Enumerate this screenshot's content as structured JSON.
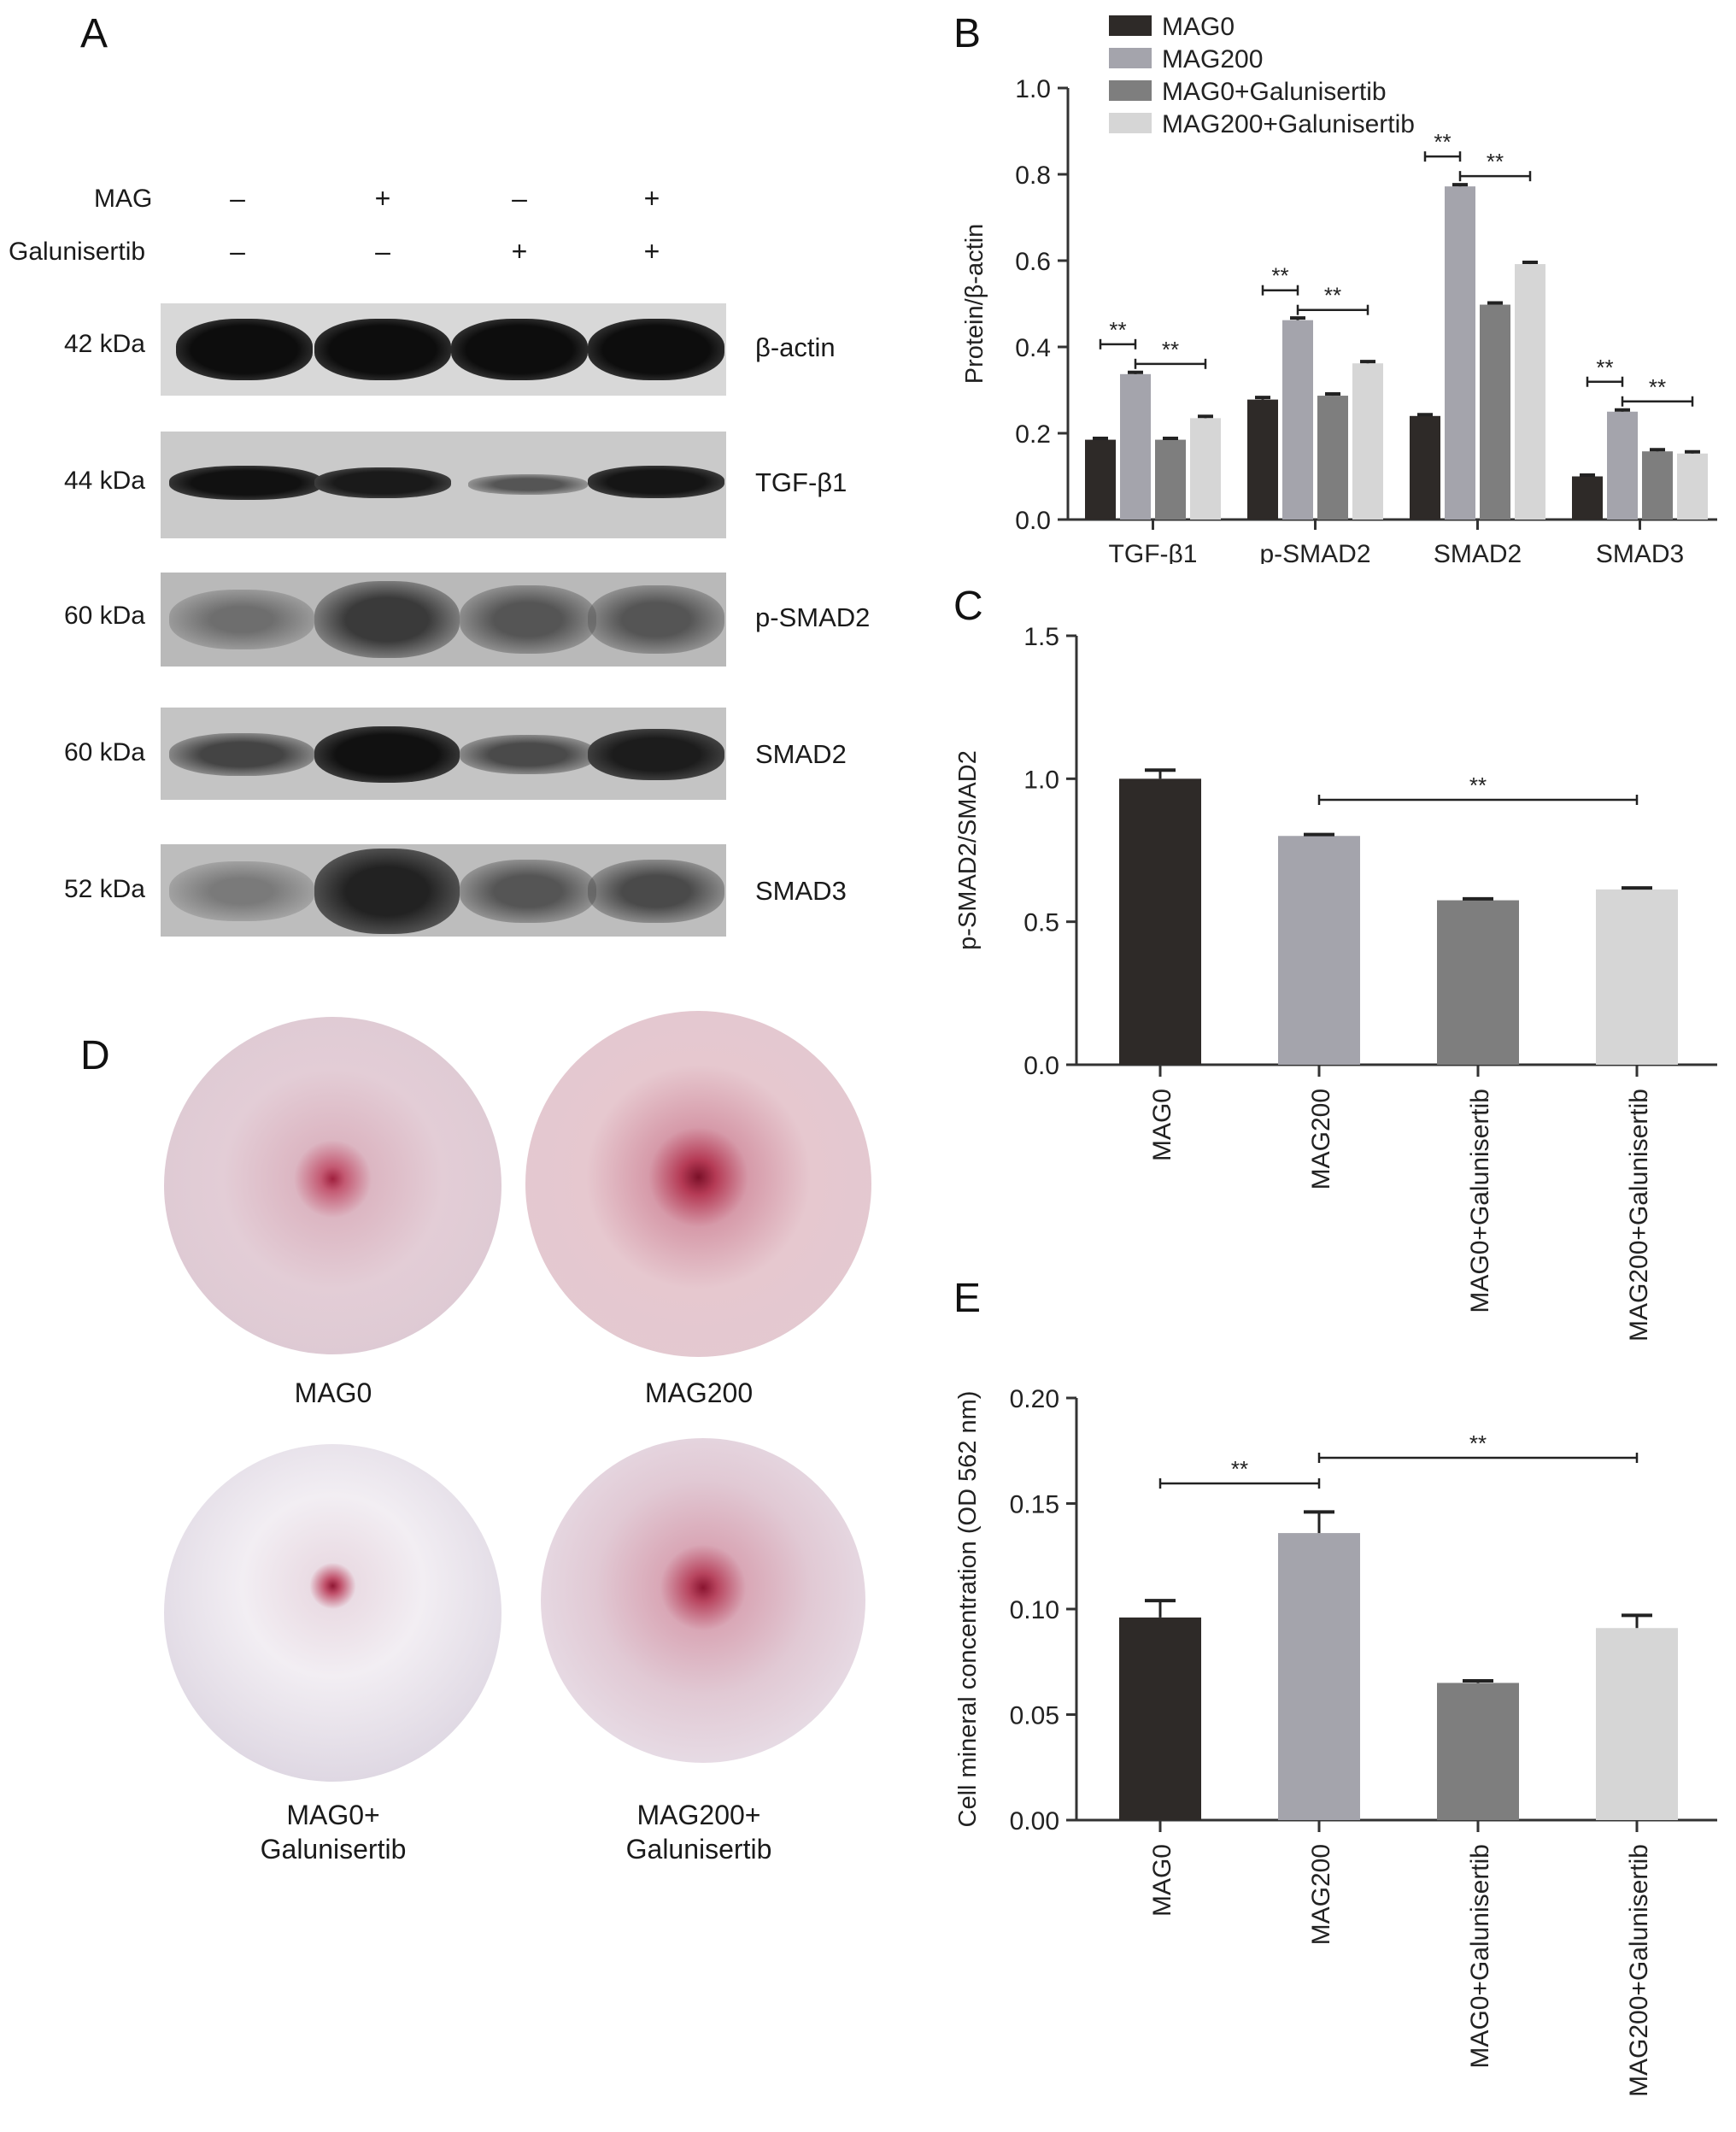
{
  "panels": {
    "a": "A",
    "b": "B",
    "c": "C",
    "d": "D",
    "e": "E"
  },
  "western_blot": {
    "treatments": [
      {
        "name": "MAG",
        "signs": [
          "–",
          "+",
          "–",
          "+"
        ]
      },
      {
        "name": "Galunisertib",
        "signs": [
          "–",
          "–",
          "+",
          "+"
        ]
      }
    ],
    "rows": [
      {
        "kda": "42 kDa",
        "protein": "β-actin"
      },
      {
        "kda": "44 kDa",
        "protein": "TGF-β1"
      },
      {
        "kda": "60 kDa",
        "protein": "p-SMAD2"
      },
      {
        "kda": "60 kDa",
        "protein": "SMAD2"
      },
      {
        "kda": "52 kDa",
        "protein": "SMAD3"
      }
    ]
  },
  "staining": {
    "labels": [
      {
        "line1": "MAG0",
        "line2": ""
      },
      {
        "line1": "MAG200",
        "line2": ""
      },
      {
        "line1": "MAG0+",
        "line2": "Galunisertib"
      },
      {
        "line1": "MAG200+",
        "line2": "Galunisertib"
      }
    ]
  },
  "chart_data": [
    {
      "id": "B",
      "type": "bar",
      "categories": [
        "TGF-β1",
        "p-SMAD2",
        "SMAD2",
        "SMAD3"
      ],
      "series": [
        {
          "name": "MAG0",
          "color": "#2e2a28",
          "values": [
            0.185,
            0.278,
            0.24,
            0.1
          ],
          "errors": [
            0.003,
            0.005,
            0.003,
            0.003
          ]
        },
        {
          "name": "MAG200",
          "color": "#a4a4ac",
          "values": [
            0.337,
            0.462,
            0.772,
            0.25
          ],
          "errors": [
            0.004,
            0.005,
            0.004,
            0.004
          ]
        },
        {
          "name": "MAG0+Galunisertib",
          "color": "#7e7e7e",
          "values": [
            0.185,
            0.287,
            0.498,
            0.158
          ],
          "errors": [
            0.003,
            0.004,
            0.004,
            0.004
          ]
        },
        {
          "name": "MAG200+Galunisertib",
          "color": "#d6d6d6",
          "values": [
            0.235,
            0.362,
            0.592,
            0.153
          ],
          "errors": [
            0.004,
            0.004,
            0.004,
            0.004
          ]
        }
      ],
      "ylabel": "Protein/β-actin",
      "ylim": [
        0,
        1.0
      ],
      "yticks": [
        "0.0",
        "0.2",
        "0.4",
        "0.6",
        "0.8",
        "1.0"
      ],
      "significance": [
        {
          "category": 0,
          "from": 0,
          "to": 1,
          "label": "**"
        },
        {
          "category": 0,
          "from": 1,
          "to": 3,
          "label": "**"
        },
        {
          "category": 1,
          "from": 0,
          "to": 1,
          "label": "**"
        },
        {
          "category": 1,
          "from": 1,
          "to": 3,
          "label": "**"
        },
        {
          "category": 2,
          "from": 0,
          "to": 1,
          "label": "**"
        },
        {
          "category": 2,
          "from": 1,
          "to": 3,
          "label": "**"
        },
        {
          "category": 3,
          "from": 0,
          "to": 1,
          "label": "**"
        },
        {
          "category": 3,
          "from": 1,
          "to": 3,
          "label": "**"
        }
      ],
      "legend": "top-left",
      "grid": false
    },
    {
      "id": "C",
      "type": "bar",
      "categories": [
        "MAG0",
        "MAG200",
        "MAG0+Galunisertib",
        "MAG200+Galunisertib"
      ],
      "values": [
        1.0,
        0.8,
        0.575,
        0.613
      ],
      "errors": [
        0.03,
        0.005,
        0.005,
        0.005
      ],
      "colors": [
        "#2e2a28",
        "#a4a4ac",
        "#7e7e7e",
        "#d6d6d6"
      ],
      "ylabel": "p-SMAD2/SMAD2",
      "ylim": [
        0,
        1.5
      ],
      "yticks": [
        "0.0",
        "0.5",
        "1.0",
        "1.5"
      ],
      "significance": [
        {
          "from": 1,
          "to": 3,
          "label": "**"
        }
      ],
      "grid": false
    },
    {
      "id": "E",
      "type": "bar",
      "categories": [
        "MAG0",
        "MAG200",
        "MAG0+Galunisertib",
        "MAG200+Galunisertib"
      ],
      "values": [
        0.096,
        0.136,
        0.065,
        0.091
      ],
      "errors": [
        0.008,
        0.01,
        0.001,
        0.006
      ],
      "colors": [
        "#2e2a28",
        "#a4a4ac",
        "#7e7e7e",
        "#d6d6d6"
      ],
      "ylabel": "Cell mineral concentration (OD 562 nm)",
      "ylim": [
        0,
        0.2
      ],
      "yticks": [
        "0.00",
        "0.05",
        "0.10",
        "0.15",
        "0.20"
      ],
      "significance": [
        {
          "from": 0,
          "to": 1,
          "label": "**"
        },
        {
          "from": 1,
          "to": 3,
          "label": "**"
        }
      ],
      "grid": false
    }
  ]
}
